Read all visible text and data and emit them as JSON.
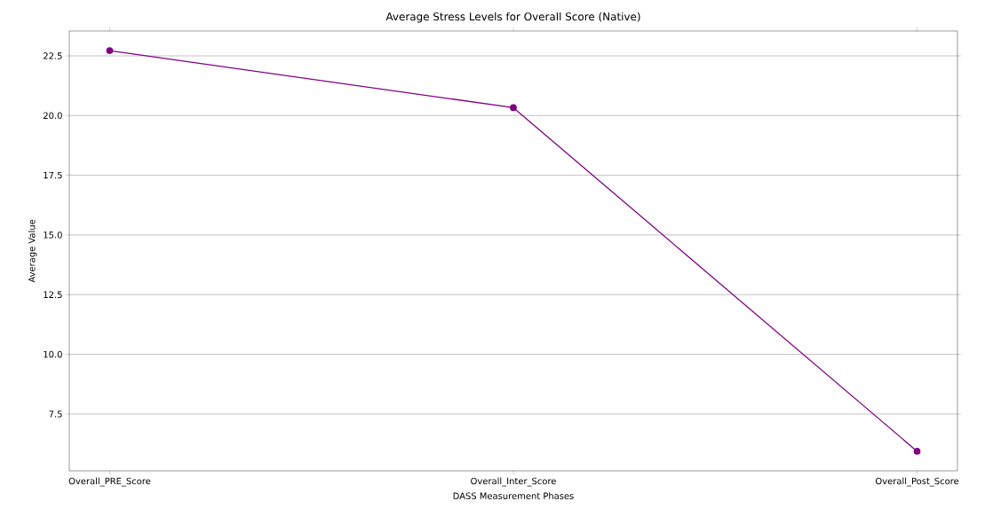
{
  "chart_data": {
    "type": "line",
    "title": "Average Stress Levels for Overall Score (Native)",
    "xlabel": "DASS Measurement Phases",
    "ylabel": "Average Value",
    "categories": [
      "Overall_PRE_Score",
      "Overall_Inter_Score",
      "Overall_Post_Score"
    ],
    "values": [
      22.72,
      20.33,
      5.94
    ],
    "color": "#800080",
    "marker": "circle",
    "line_style": "solid",
    "grid": "y",
    "ylim": [
      5.12,
      23.54
    ],
    "yticks": [
      {
        "value": 7.5,
        "label": "7.5"
      },
      {
        "value": 10,
        "label": "10.0"
      },
      {
        "value": 12.5,
        "label": "12.5"
      },
      {
        "value": 15,
        "label": "15.0"
      },
      {
        "value": 17.5,
        "label": "17.5"
      },
      {
        "value": 20,
        "label": "20.0"
      },
      {
        "value": 22.5,
        "label": "22.5"
      }
    ]
  }
}
